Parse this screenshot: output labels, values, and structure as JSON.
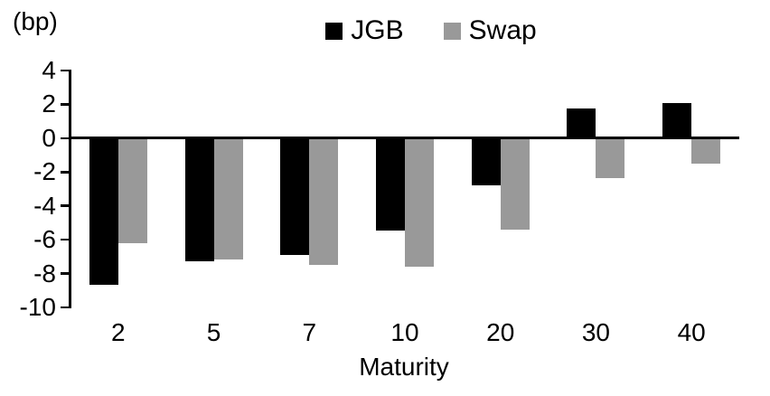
{
  "chart_data": {
    "type": "bar",
    "unit_label": "(bp)",
    "xlabel": "Maturity",
    "categories": [
      "2",
      "5",
      "7",
      "10",
      "20",
      "30",
      "40"
    ],
    "series": [
      {
        "name": "JGB",
        "color": "#000000",
        "values": [
          -8.6,
          -7.2,
          -6.8,
          -5.4,
          -2.7,
          1.7,
          2.0
        ]
      },
      {
        "name": "Swap",
        "color": "#999999",
        "values": [
          -6.1,
          -7.1,
          -7.4,
          -7.5,
          -5.3,
          -2.3,
          -1.4
        ]
      }
    ],
    "yticks": [
      4,
      2,
      0,
      -2,
      -4,
      -6,
      -8,
      -10
    ],
    "ylim": [
      -10,
      4
    ],
    "legend_position": "top-center",
    "grid": false,
    "axis_color": "#000000",
    "background_color": "#ffffff"
  }
}
